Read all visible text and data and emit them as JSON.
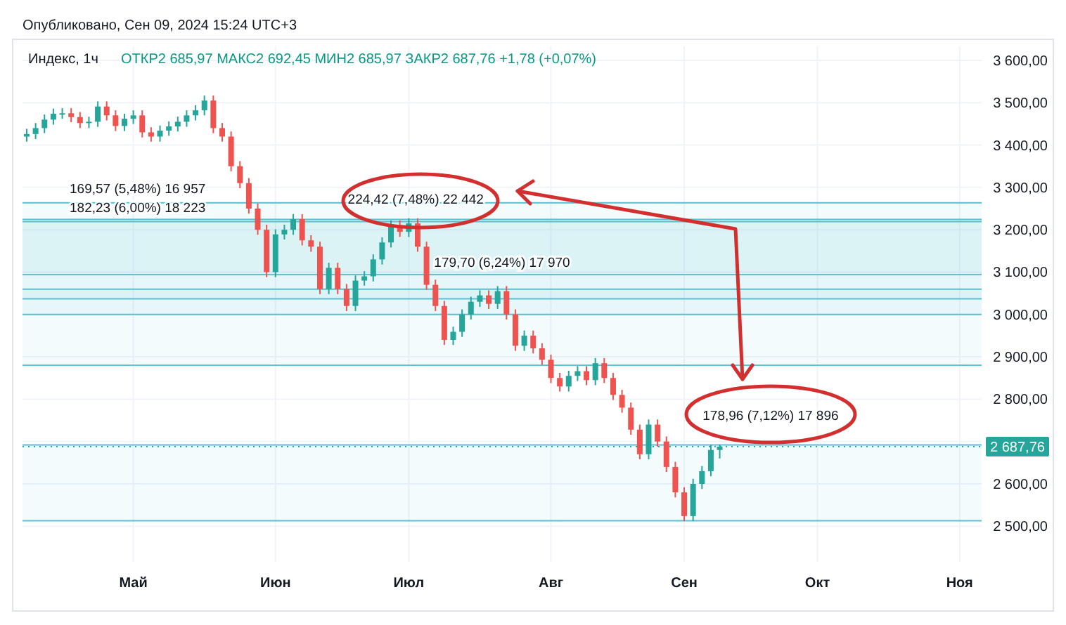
{
  "chart_data": {
    "type": "candlestick",
    "title": "Индекс, 1ч",
    "subtitle": "ОТКР2 685,97  МАКС2 692,45  МИН2 685,97  ЗАКР2 687,76  +1,78 (+0,07%)",
    "categories": [
      null,
      null,
      null,
      null,
      null,
      null,
      null,
      null,
      null,
      null,
      null,
      null,
      "Май",
      null,
      null,
      null,
      null,
      null,
      null,
      null,
      null,
      null,
      null,
      null,
      null,
      null,
      null,
      null,
      "Июн",
      null,
      null,
      null,
      null,
      null,
      null,
      null,
      null,
      null,
      null,
      null,
      null,
      null,
      null,
      "Июл",
      null,
      null,
      null,
      null,
      null,
      null,
      null,
      null,
      null,
      null,
      null,
      null,
      null,
      null,
      null,
      "Авг",
      null,
      null,
      null,
      null,
      null,
      null,
      null,
      null,
      null,
      null,
      null,
      null,
      null,
      null,
      "Сен",
      null,
      null,
      null,
      null,
      null,
      null,
      null,
      null,
      null,
      null,
      null,
      null,
      null,
      null,
      "Окт",
      null,
      null,
      null,
      null,
      null,
      null,
      null,
      null,
      null,
      null,
      null,
      null,
      null,
      null,
      null,
      "Ноя",
      null,
      null
    ],
    "ohlc": [
      [
        3420,
        3438,
        3408,
        3426
      ],
      [
        3426,
        3452,
        3414,
        3440
      ],
      [
        3440,
        3472,
        3428,
        3460
      ],
      [
        3460,
        3486,
        3448,
        3474
      ],
      [
        3474,
        3487,
        3462,
        3475
      ],
      [
        3475,
        3487,
        3454,
        3466
      ],
      [
        3466,
        3478,
        3440,
        3452
      ],
      [
        3452,
        3467,
        3440,
        3455
      ],
      [
        3455,
        3503,
        3443,
        3491
      ],
      [
        3491,
        3503,
        3458,
        3470
      ],
      [
        3470,
        3482,
        3433,
        3445
      ],
      [
        3445,
        3474,
        3433,
        3462
      ],
      [
        3462,
        3482,
        3450,
        3470
      ],
      [
        3470,
        3482,
        3418,
        3430
      ],
      [
        3430,
        3442,
        3408,
        3420
      ],
      [
        3420,
        3446,
        3408,
        3434
      ],
      [
        3434,
        3456,
        3422,
        3444
      ],
      [
        3444,
        3467,
        3432,
        3455
      ],
      [
        3455,
        3482,
        3443,
        3470
      ],
      [
        3470,
        3494,
        3458,
        3482
      ],
      [
        3482,
        3517,
        3470,
        3505
      ],
      [
        3505,
        3517,
        3428,
        3440
      ],
      [
        3440,
        3452,
        3408,
        3420
      ],
      [
        3420,
        3432,
        3338,
        3350
      ],
      [
        3350,
        3362,
        3298,
        3310
      ],
      [
        3310,
        3322,
        3238,
        3250
      ],
      [
        3250,
        3262,
        3188,
        3200
      ],
      [
        3200,
        3212,
        3088,
        3100
      ],
      [
        3100,
        3201,
        3088,
        3189
      ],
      [
        3189,
        3212,
        3177,
        3200
      ],
      [
        3200,
        3237,
        3188,
        3225
      ],
      [
        3225,
        3237,
        3163,
        3175
      ],
      [
        3175,
        3187,
        3148,
        3160
      ],
      [
        3160,
        3172,
        3048,
        3060
      ],
      [
        3060,
        3122,
        3048,
        3110
      ],
      [
        3110,
        3122,
        3048,
        3060
      ],
      [
        3060,
        3072,
        3008,
        3020
      ],
      [
        3020,
        3092,
        3008,
        3080
      ],
      [
        3080,
        3102,
        3068,
        3090
      ],
      [
        3090,
        3142,
        3078,
        3130
      ],
      [
        3130,
        3182,
        3118,
        3170
      ],
      [
        3170,
        3222,
        3158,
        3210
      ],
      [
        3210,
        3222,
        3183,
        3195
      ],
      [
        3195,
        3227,
        3183,
        3215
      ],
      [
        3215,
        3227,
        3148,
        3160
      ],
      [
        3160,
        3172,
        3058,
        3070
      ],
      [
        3070,
        3082,
        3008,
        3020
      ],
      [
        3020,
        3032,
        2928,
        2940
      ],
      [
        2940,
        2971,
        2928,
        2959
      ],
      [
        2959,
        3012,
        2947,
        3000
      ],
      [
        3000,
        3042,
        2988,
        3030
      ],
      [
        3030,
        3057,
        3018,
        3045
      ],
      [
        3045,
        3057,
        3013,
        3025
      ],
      [
        3025,
        3067,
        3013,
        3055
      ],
      [
        3055,
        3067,
        2988,
        3000
      ],
      [
        3000,
        3012,
        2914,
        2926
      ],
      [
        2926,
        2962,
        2914,
        2950
      ],
      [
        2950,
        2962,
        2908,
        2920
      ],
      [
        2920,
        2932,
        2881,
        2893
      ],
      [
        2893,
        2905,
        2838,
        2850
      ],
      [
        2850,
        2862,
        2818,
        2830
      ],
      [
        2830,
        2867,
        2818,
        2855
      ],
      [
        2855,
        2878,
        2843,
        2866
      ],
      [
        2866,
        2878,
        2833,
        2845
      ],
      [
        2845,
        2897,
        2833,
        2885
      ],
      [
        2885,
        2897,
        2838,
        2850
      ],
      [
        2850,
        2862,
        2798,
        2810
      ],
      [
        2810,
        2822,
        2768,
        2780
      ],
      [
        2780,
        2792,
        2716,
        2728
      ],
      [
        2728,
        2740,
        2658,
        2670
      ],
      [
        2670,
        2752,
        2658,
        2740
      ],
      [
        2740,
        2752,
        2688,
        2700
      ],
      [
        2700,
        2712,
        2628,
        2640
      ],
      [
        2640,
        2652,
        2568,
        2580
      ],
      [
        2580,
        2592,
        2512,
        2524
      ],
      [
        2524,
        2612,
        2512,
        2600
      ],
      [
        2600,
        2642,
        2588,
        2630
      ],
      [
        2630,
        2692,
        2618,
        2680
      ],
      [
        2680,
        2692.45,
        2660,
        2687.76
      ],
      null,
      null,
      null,
      null,
      null,
      null,
      null,
      null,
      null,
      null,
      null,
      null,
      null,
      null,
      null,
      null,
      null,
      null,
      null,
      null,
      null,
      null,
      null,
      null,
      null,
      null,
      null,
      null,
      null
    ],
    "ylim": [
      2416,
      3633
    ],
    "yticks": [
      {
        "value": 2500,
        "label": "2 500,00"
      },
      {
        "value": 2600,
        "label": "2 600,00"
      },
      {
        "value": 2700,
        "label": null
      },
      {
        "value": 2800,
        "label": "2 800,00"
      },
      {
        "value": 2900,
        "label": "2 900,00"
      },
      {
        "value": 3000,
        "label": "3 000,00"
      },
      {
        "value": 3100,
        "label": "3 100,00"
      },
      {
        "value": 3200,
        "label": "3 200,00"
      },
      {
        "value": 3300,
        "label": "3 300,00"
      },
      {
        "value": 3400,
        "label": "3 400,00"
      },
      {
        "value": 3500,
        "label": "3 500,00"
      },
      {
        "value": 3600,
        "label": "3 600,00"
      }
    ],
    "grid": true,
    "bands": [
      {
        "axis": "y",
        "from": 3094,
        "to": 3263.57,
        "color": "#5bc0cf",
        "label": "169,57 (5,48%) 16 957"
      },
      {
        "axis": "y",
        "from": 3037,
        "to": 3219.23,
        "color": "#5bc0cf",
        "label": "182,23 (6,00%) 18 223"
      },
      {
        "axis": "y",
        "from": 3000,
        "to": 3224.42,
        "color": "#5bc0cf",
        "label": "224,42 (7,48%) 22 442"
      },
      {
        "axis": "y",
        "from": 2880,
        "to": 3059.7,
        "color": "#5bc0cf",
        "label": "179,70 (6,24%) 17 970"
      },
      {
        "axis": "y",
        "from": 2513,
        "to": 2691.96,
        "color": "#5bc0cf",
        "label": "178,96 (7,12%) 17 896"
      }
    ],
    "ref_lines": [
      {
        "axis": "y",
        "value": 2687.76,
        "label": "2 687,76",
        "color": "#26a69a",
        "line_style": "dotted"
      }
    ],
    "annotations": [
      "Опубликовано, Сен 09, 2024 15:24 UTC+3"
    ]
  }
}
